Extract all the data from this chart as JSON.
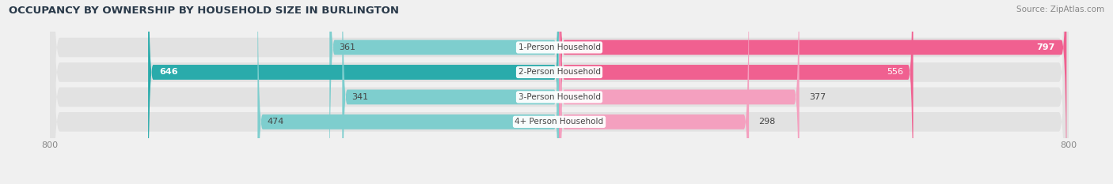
{
  "title": "OCCUPANCY BY OWNERSHIP BY HOUSEHOLD SIZE IN BURLINGTON",
  "source": "Source: ZipAtlas.com",
  "categories": [
    "1-Person Household",
    "2-Person Household",
    "3-Person Household",
    "4+ Person Household"
  ],
  "owner_values": [
    361,
    646,
    341,
    474
  ],
  "renter_values": [
    797,
    556,
    377,
    298
  ],
  "owner_color_light": "#7ecece",
  "owner_color_dark": "#2aabab",
  "renter_color_light": "#f4a0bf",
  "renter_color_dark": "#f06090",
  "axis_max": 800,
  "background_color": "#f0f0f0",
  "row_bg_color": "#e2e2e2",
  "white": "#ffffff",
  "dark_text": "#444444",
  "title_fontsize": 9.5,
  "source_fontsize": 7.5,
  "bar_label_fontsize": 8,
  "cat_label_fontsize": 7.5
}
